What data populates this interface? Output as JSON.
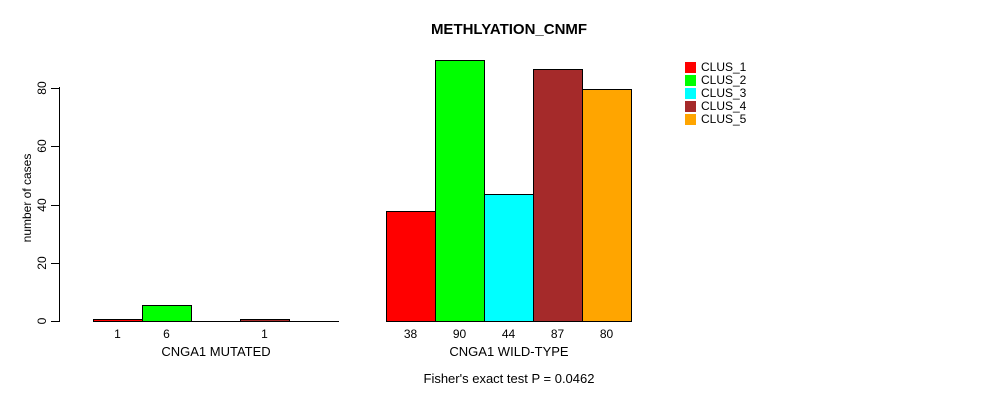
{
  "chart_data": {
    "type": "bar",
    "title": "METHLYATION_CNMF",
    "ylabel": "number of cases",
    "xlabel": "",
    "yticks": [
      0,
      20,
      40,
      60,
      80
    ],
    "ylim": [
      0,
      93
    ],
    "grid": false,
    "legend_position": "right",
    "categories": [
      "CNGA1 MUTATED",
      "CNGA1 WILD-TYPE"
    ],
    "series": [
      {
        "name": "CLUS_1",
        "color": "#ff0000",
        "values": [
          1,
          38
        ]
      },
      {
        "name": "CLUS_2",
        "color": "#00ff00",
        "values": [
          6,
          90
        ]
      },
      {
        "name": "CLUS_3",
        "color": "#00ffff",
        "values": [
          0,
          44
        ]
      },
      {
        "name": "CLUS_4",
        "color": "#a52a2a",
        "values": [
          1,
          87
        ]
      },
      {
        "name": "CLUS_5",
        "color": "#ffa500",
        "values": [
          0,
          80
        ]
      }
    ],
    "bar_value_labels": [
      [
        "1",
        "6",
        "",
        "1",
        ""
      ],
      [
        "38",
        "90",
        "44",
        "87",
        "80"
      ]
    ],
    "annotation": "Fisher's exact test P = 0.0462"
  },
  "legend": {
    "items": [
      {
        "label": "CLUS_1",
        "color": "#ff0000"
      },
      {
        "label": "CLUS_2",
        "color": "#00ff00"
      },
      {
        "label": "CLUS_3",
        "color": "#00ffff"
      },
      {
        "label": "CLUS_4",
        "color": "#a52a2a"
      },
      {
        "label": "CLUS_5",
        "color": "#ffa500"
      }
    ]
  },
  "colors": {
    "background": "#ffffff",
    "axis": "#000000",
    "text": "#000000"
  }
}
